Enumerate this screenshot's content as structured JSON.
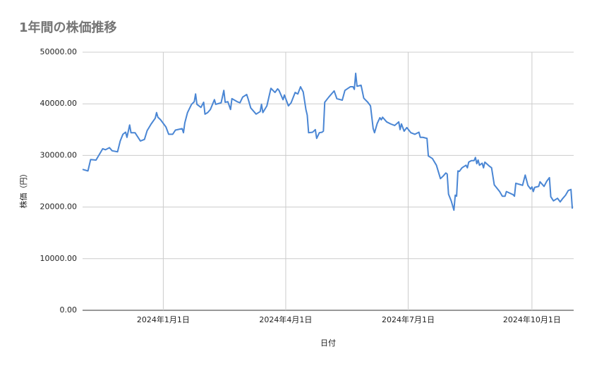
{
  "chart_data": {
    "type": "line",
    "title": "1年間の株価推移",
    "x_label": "日付",
    "y_label": "株価（円）",
    "color": "#4a86d4",
    "grid": true,
    "x": [
      "2023-11-02",
      "2023-11-06",
      "2023-11-08",
      "2023-11-12",
      "2023-11-17",
      "2023-11-19",
      "2023-11-22",
      "2023-11-24",
      "2023-11-28",
      "2023-11-30",
      "2023-12-02",
      "2023-12-04",
      "2023-12-05",
      "2023-12-07",
      "2023-12-08",
      "2023-12-11",
      "2023-12-15",
      "2023-12-18",
      "2023-12-20",
      "2023-12-23",
      "2023-12-26",
      "2023-12-27",
      "2023-12-28",
      "2023-12-30",
      "2024-01-03",
      "2024-01-05",
      "2024-01-08",
      "2024-01-10",
      "2024-01-15",
      "2024-01-16",
      "2024-01-17",
      "2024-01-19",
      "2024-01-22",
      "2024-01-24",
      "2024-01-25",
      "2024-01-26",
      "2024-01-29",
      "2024-01-31",
      "2024-02-01",
      "2024-02-03",
      "2024-02-05",
      "2024-02-08",
      "2024-02-09",
      "2024-02-13",
      "2024-02-15",
      "2024-02-16",
      "2024-02-18",
      "2024-02-20",
      "2024-02-21",
      "2024-02-25",
      "2024-02-27",
      "2024-02-29",
      "2024-03-03",
      "2024-03-04",
      "2024-03-06",
      "2024-03-10",
      "2024-03-13",
      "2024-03-14",
      "2024-03-15",
      "2024-03-18",
      "2024-03-21",
      "2024-03-24",
      "2024-03-26",
      "2024-03-27",
      "2024-03-30",
      "2024-03-31",
      "2024-04-03",
      "2024-04-05",
      "2024-04-08",
      "2024-04-10",
      "2024-04-12",
      "2024-04-14",
      "2024-04-16",
      "2024-04-17",
      "2024-04-18",
      "2024-04-21",
      "2024-04-23",
      "2024-04-24",
      "2024-04-26",
      "2024-04-28",
      "2024-04-29",
      "2024-04-30",
      "2024-05-03",
      "2024-05-07",
      "2024-05-09",
      "2024-05-13",
      "2024-05-15",
      "2024-05-19",
      "2024-05-21",
      "2024-05-22",
      "2024-05-23",
      "2024-05-24",
      "2024-05-27",
      "2024-05-29",
      "2024-06-01",
      "2024-06-03",
      "2024-06-05",
      "2024-06-06",
      "2024-06-08",
      "2024-06-10",
      "2024-06-11",
      "2024-06-12",
      "2024-06-15",
      "2024-06-18",
      "2024-06-21",
      "2024-06-24",
      "2024-06-25",
      "2024-06-26",
      "2024-06-28",
      "2024-06-30",
      "2024-07-03",
      "2024-07-06",
      "2024-07-09",
      "2024-07-10",
      "2024-07-12",
      "2024-07-15",
      "2024-07-16",
      "2024-07-19",
      "2024-07-22",
      "2024-07-25",
      "2024-07-27",
      "2024-07-29",
      "2024-07-30",
      "2024-07-31",
      "2024-08-02",
      "2024-08-04",
      "2024-08-05",
      "2024-08-06",
      "2024-08-07",
      "2024-08-08",
      "2024-08-10",
      "2024-08-13",
      "2024-08-14",
      "2024-08-15",
      "2024-08-17",
      "2024-08-19",
      "2024-08-20",
      "2024-08-21",
      "2024-08-22",
      "2024-08-23",
      "2024-08-25",
      "2024-08-26",
      "2024-08-27",
      "2024-08-30",
      "2024-09-01",
      "2024-09-03",
      "2024-09-07",
      "2024-09-09",
      "2024-09-11",
      "2024-09-12",
      "2024-09-17",
      "2024-09-18",
      "2024-09-19",
      "2024-09-23",
      "2024-09-24",
      "2024-09-26",
      "2024-09-28",
      "2024-09-30",
      "2024-10-01",
      "2024-10-02",
      "2024-10-03",
      "2024-10-06",
      "2024-10-07",
      "2024-10-10",
      "2024-10-12",
      "2024-10-14",
      "2024-10-15",
      "2024-10-17",
      "2024-10-20",
      "2024-10-22",
      "2024-10-24",
      "2024-10-26",
      "2024-10-28",
      "2024-10-30",
      "2024-10-31"
    ],
    "values": [
      27300,
      27000,
      29200,
      29100,
      31300,
      31100,
      31500,
      30900,
      30700,
      32800,
      34100,
      34500,
      33500,
      35900,
      34400,
      34400,
      32800,
      33100,
      34800,
      36100,
      37200,
      38300,
      37400,
      36900,
      35500,
      34100,
      34100,
      34900,
      35200,
      34400,
      36300,
      38300,
      39900,
      40400,
      41900,
      39900,
      39300,
      40300,
      38000,
      38300,
      38900,
      40800,
      39900,
      40200,
      42600,
      40300,
      40400,
      38900,
      41000,
      40400,
      40200,
      41300,
      41800,
      41000,
      39200,
      38000,
      38500,
      39900,
      38300,
      39600,
      43000,
      42200,
      42900,
      42600,
      40800,
      41700,
      39600,
      40200,
      42200,
      41900,
      43300,
      42300,
      38900,
      37800,
      34400,
      34500,
      35000,
      33300,
      34400,
      34500,
      34700,
      40300,
      41300,
      42500,
      41000,
      40700,
      42600,
      43300,
      43300,
      42800,
      45900,
      43400,
      43600,
      41100,
      40300,
      39600,
      35200,
      34400,
      36200,
      37300,
      36900,
      37400,
      36500,
      36100,
      35800,
      36500,
      35000,
      36100,
      34700,
      35400,
      34400,
      34100,
      34500,
      33500,
      33500,
      33300,
      29900,
      29400,
      28100,
      25500,
      26000,
      26600,
      26400,
      22500,
      21200,
      19400,
      22300,
      22100,
      27000,
      26900,
      27600,
      28100,
      27600,
      28700,
      29000,
      29000,
      29600,
      28400,
      29100,
      28100,
      28500,
      27600,
      28700,
      28000,
      27600,
      24300,
      23000,
      22100,
      22100,
      23000,
      22400,
      22100,
      24600,
      24300,
      24200,
      26200,
      24200,
      23500,
      23900,
      23000,
      23800,
      24000,
      24900,
      24000,
      25000,
      25700,
      22000,
      21200,
      21700,
      21000,
      21700,
      22300,
      23200,
      23400,
      19700
    ],
    "xlim": [
      "2023-11-02",
      "2024-11-01"
    ],
    "xticks": [
      {
        "value": "2024-01-01",
        "label": "2024年1月1日"
      },
      {
        "value": "2024-04-01",
        "label": "2024年4月1日"
      },
      {
        "value": "2024-07-01",
        "label": "2024年7月1日"
      },
      {
        "value": "2024-10-01",
        "label": "2024年10月1日"
      }
    ],
    "ylim": [
      0,
      50000
    ],
    "yticks": [
      {
        "value": 0,
        "label": "0.00"
      },
      {
        "value": 10000,
        "label": "10000.00"
      },
      {
        "value": 20000,
        "label": "20000.00"
      },
      {
        "value": 30000,
        "label": "30000.00"
      },
      {
        "value": 40000,
        "label": "40000.00"
      },
      {
        "value": 50000,
        "label": "50000.00"
      }
    ]
  }
}
